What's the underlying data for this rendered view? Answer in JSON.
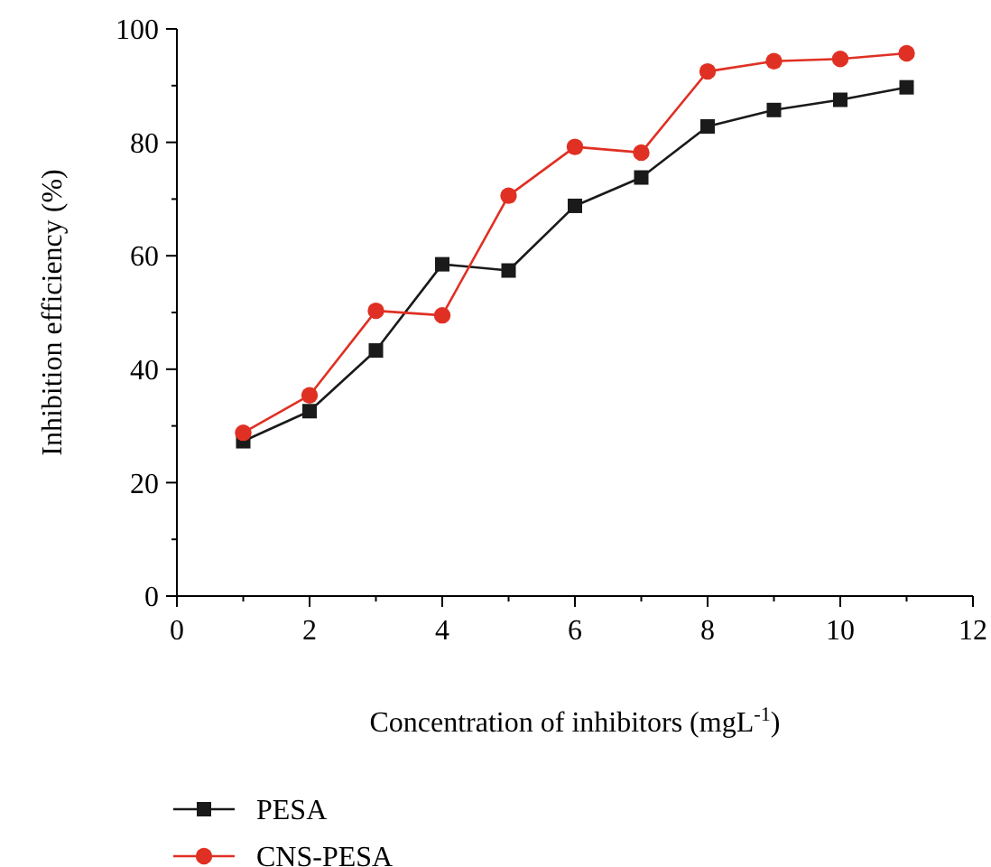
{
  "chart_data": {
    "type": "line",
    "xlabel": "Concentration of inhibitors (mgL$^{-1}$)",
    "ylabel": "Inhibition efficiency (%)",
    "x": [
      1,
      2,
      3,
      4,
      5,
      6,
      7,
      8,
      9,
      10,
      11
    ],
    "series": [
      {
        "name": "PESA",
        "color": "#1a1a1a",
        "marker": "square",
        "values": [
          27.3,
          32.6,
          43.3,
          58.5,
          57.4,
          68.8,
          73.8,
          82.8,
          85.7,
          87.5,
          89.7
        ]
      },
      {
        "name": "CNS-PESA",
        "color": "#e03024",
        "marker": "circle",
        "values": [
          28.8,
          35.4,
          50.3,
          49.5,
          70.6,
          79.2,
          78.2,
          92.5,
          94.3,
          94.7,
          95.7
        ]
      }
    ],
    "xlim": [
      0,
      12
    ],
    "xticks": [
      0,
      {
        "value": 1,
        "label": null
      },
      2,
      {
        "value": 3,
        "label": null
      },
      4,
      {
        "value": 5,
        "label": null
      },
      6,
      {
        "value": 7,
        "label": null
      },
      8,
      {
        "value": 9,
        "label": null
      },
      10,
      {
        "value": 11,
        "label": null
      },
      12
    ],
    "ylim": [
      0,
      100
    ],
    "yticks": [
      0,
      {
        "value": 10,
        "label": null
      },
      20,
      {
        "value": 30,
        "label": null
      },
      40,
      {
        "value": 50,
        "label": null
      },
      60,
      {
        "value": 70,
        "label": null
      },
      80,
      {
        "value": 90,
        "label": null
      },
      100
    ],
    "grid": false,
    "legend": "bottom left",
    "line_style": "solid"
  }
}
